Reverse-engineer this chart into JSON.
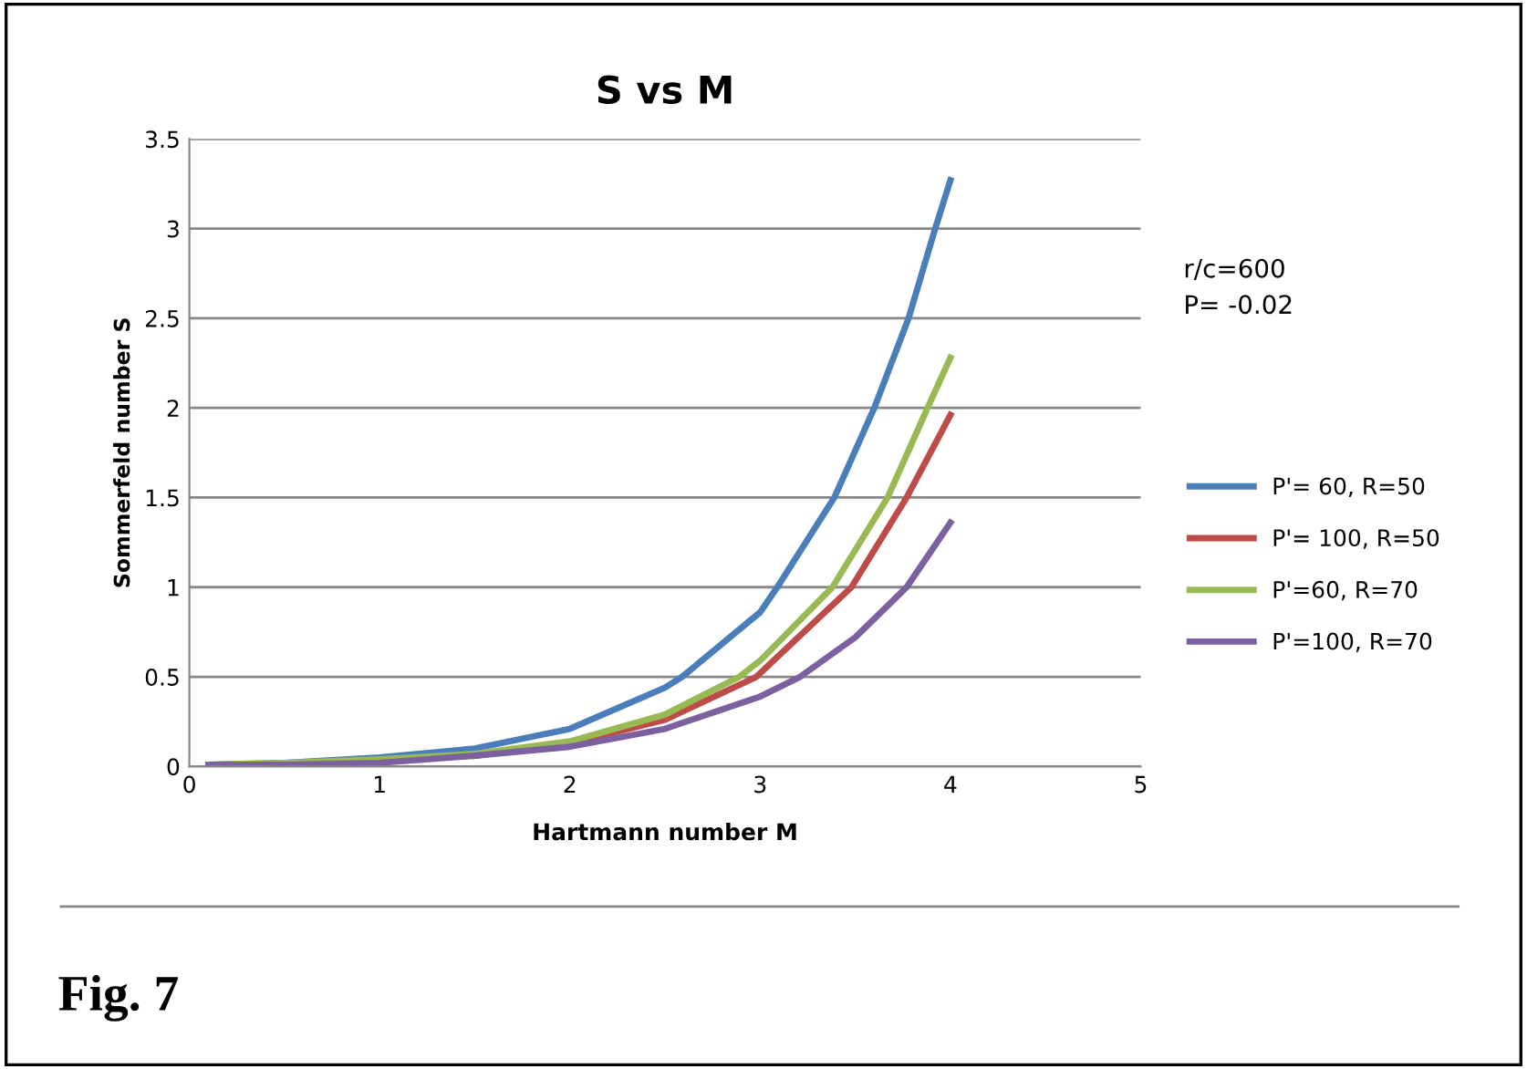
{
  "chart_data": {
    "type": "line",
    "title": "S vs M",
    "xlabel": "Hartmann number M",
    "ylabel": "Sommerfeld number S",
    "xlim": [
      0,
      5
    ],
    "xticks": [
      0,
      1,
      2,
      3,
      4,
      5
    ],
    "ylim": [
      0,
      3.5
    ],
    "yticks": [
      0,
      0.5,
      1,
      1.5,
      2,
      2.5,
      3,
      3.5
    ],
    "grid": "y",
    "legend": "right",
    "marker": "none",
    "line_style": "solid",
    "annotations": [
      "r/c=600\nP= -0.02",
      "Fig. 7"
    ],
    "series": [
      {
        "name": "P'= 60, R=50",
        "color": "#4a7ebb",
        "x": [
          0.1,
          0.5,
          1,
          1.5,
          2,
          2.5,
          2.59,
          3,
          3.09,
          3.39,
          3.6,
          3.78,
          3.92,
          4
        ],
        "values": [
          0.01,
          0.02,
          0.05,
          0.1,
          0.21,
          0.44,
          0.5,
          0.86,
          1,
          1.5,
          2,
          2.5,
          3,
          3.27
        ]
      },
      {
        "name": "P'= 100, R=50",
        "color": "#be4b48",
        "x": [
          1.5,
          2,
          2.5,
          2.98,
          3.48,
          3.77,
          4
        ],
        "values": [
          0.06,
          0.13,
          0.26,
          0.5,
          1,
          1.5,
          1.96
        ]
      },
      {
        "name": "P'=60, R=70",
        "color": "#98b954",
        "x": [
          0.1,
          0.5,
          1,
          1.5,
          2,
          2.5,
          2.89,
          3,
          3.38,
          3.67,
          3.88,
          4
        ],
        "values": [
          0.01,
          0.02,
          0.04,
          0.07,
          0.14,
          0.29,
          0.5,
          0.59,
          1,
          1.5,
          2,
          2.28
        ]
      },
      {
        "name": "P'=100, R=70",
        "color": "#7d60a0",
        "x": [
          0.1,
          0.5,
          1,
          1.5,
          2,
          2.5,
          3,
          3.21,
          3.5,
          3.77,
          4
        ],
        "values": [
          0.01,
          0.01,
          0.02,
          0.06,
          0.11,
          0.21,
          0.39,
          0.5,
          0.72,
          1,
          1.36
        ]
      }
    ]
  }
}
